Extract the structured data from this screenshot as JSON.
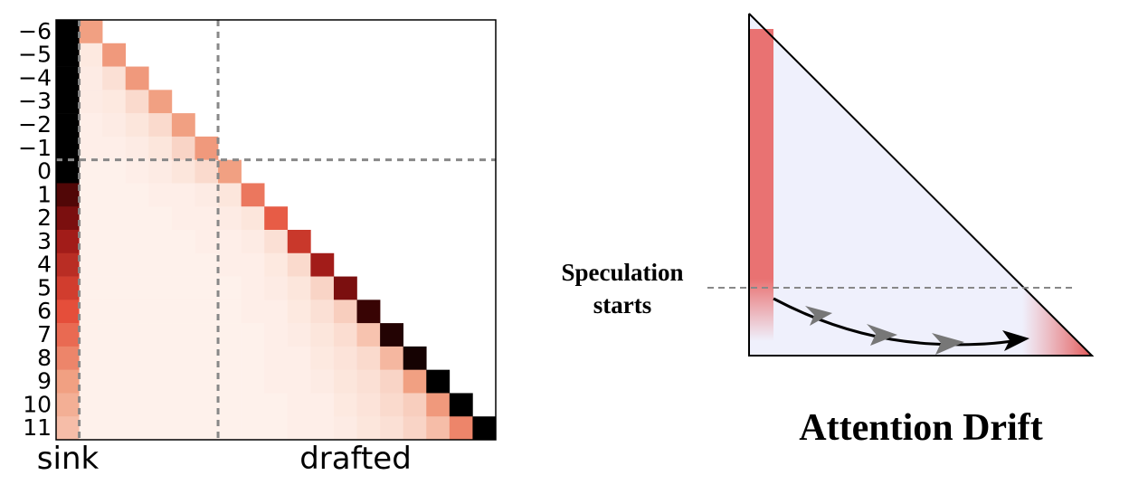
{
  "chart_data": {
    "type": "heatmap",
    "rows": [
      "−6",
      "−5",
      "−4",
      "−3",
      "−2",
      "−1",
      "0",
      "1",
      "2",
      "3",
      "4",
      "5",
      "6",
      "7",
      "8",
      "9",
      "10",
      "11"
    ],
    "column_labels": [
      "sink",
      "drafted"
    ],
    "values": [
      [
        1,
        0.3,
        null,
        null,
        null,
        null,
        null,
        null,
        null,
        null,
        null,
        null,
        null,
        null,
        null,
        null,
        null,
        null,
        null
      ],
      [
        1,
        0.05,
        0.32,
        null,
        null,
        null,
        null,
        null,
        null,
        null,
        null,
        null,
        null,
        null,
        null,
        null,
        null,
        null,
        null
      ],
      [
        1,
        0.04,
        0.08,
        0.32,
        null,
        null,
        null,
        null,
        null,
        null,
        null,
        null,
        null,
        null,
        null,
        null,
        null,
        null,
        null
      ],
      [
        1,
        0.04,
        0.05,
        0.1,
        0.3,
        null,
        null,
        null,
        null,
        null,
        null,
        null,
        null,
        null,
        null,
        null,
        null,
        null,
        null
      ],
      [
        1,
        0.03,
        0.04,
        0.06,
        0.1,
        0.3,
        null,
        null,
        null,
        null,
        null,
        null,
        null,
        null,
        null,
        null,
        null,
        null,
        null
      ],
      [
        1,
        0.03,
        0.03,
        0.04,
        0.06,
        0.12,
        0.32,
        null,
        null,
        null,
        null,
        null,
        null,
        null,
        null,
        null,
        null,
        null,
        null
      ],
      [
        1,
        0.02,
        0.02,
        0.03,
        0.04,
        0.06,
        0.1,
        0.3,
        null,
        null,
        null,
        null,
        null,
        null,
        null,
        null,
        null,
        null,
        null
      ],
      [
        0.88,
        0.02,
        0.02,
        0.02,
        0.03,
        0.03,
        0.04,
        0.06,
        0.42,
        null,
        null,
        null,
        null,
        null,
        null,
        null,
        null,
        null,
        null
      ],
      [
        0.8,
        0.02,
        0.02,
        0.02,
        0.02,
        0.03,
        0.03,
        0.04,
        0.06,
        0.5,
        null,
        null,
        null,
        null,
        null,
        null,
        null,
        null,
        null
      ],
      [
        0.72,
        0.02,
        0.02,
        0.02,
        0.02,
        0.02,
        0.03,
        0.03,
        0.04,
        0.08,
        0.62,
        null,
        null,
        null,
        null,
        null,
        null,
        null,
        null
      ],
      [
        0.66,
        0.02,
        0.02,
        0.02,
        0.02,
        0.02,
        0.02,
        0.03,
        0.03,
        0.05,
        0.1,
        0.72,
        null,
        null,
        null,
        null,
        null,
        null,
        null
      ],
      [
        0.6,
        0.02,
        0.02,
        0.02,
        0.02,
        0.02,
        0.02,
        0.02,
        0.03,
        0.04,
        0.06,
        0.12,
        0.8,
        null,
        null,
        null,
        null,
        null,
        null
      ],
      [
        0.54,
        0.02,
        0.02,
        0.02,
        0.02,
        0.02,
        0.02,
        0.02,
        0.03,
        0.03,
        0.05,
        0.08,
        0.14,
        0.92,
        null,
        null,
        null,
        null,
        null
      ],
      [
        0.46,
        0.02,
        0.02,
        0.02,
        0.02,
        0.02,
        0.02,
        0.02,
        0.02,
        0.03,
        0.04,
        0.06,
        0.09,
        0.18,
        0.95,
        null,
        null,
        null,
        null
      ],
      [
        0.38,
        0.02,
        0.02,
        0.02,
        0.02,
        0.02,
        0.02,
        0.02,
        0.02,
        0.03,
        0.03,
        0.05,
        0.07,
        0.1,
        0.22,
        0.97,
        null,
        null,
        null
      ],
      [
        0.3,
        0.02,
        0.02,
        0.02,
        0.02,
        0.02,
        0.02,
        0.02,
        0.02,
        0.03,
        0.03,
        0.04,
        0.06,
        0.08,
        0.12,
        0.3,
        1,
        null,
        null
      ],
      [
        0.25,
        0.02,
        0.02,
        0.02,
        0.02,
        0.02,
        0.02,
        0.02,
        0.02,
        0.02,
        0.03,
        0.03,
        0.05,
        0.07,
        0.1,
        0.14,
        0.32,
        1,
        null
      ],
      [
        0.2,
        0.02,
        0.02,
        0.02,
        0.02,
        0.02,
        0.02,
        0.02,
        0.02,
        0.02,
        0.03,
        0.03,
        0.04,
        0.06,
        0.08,
        0.12,
        0.2,
        0.38,
        1
      ]
    ]
  },
  "diagram": {
    "annotation": [
      "Speculation",
      "starts"
    ],
    "title": "Attention Drift"
  }
}
